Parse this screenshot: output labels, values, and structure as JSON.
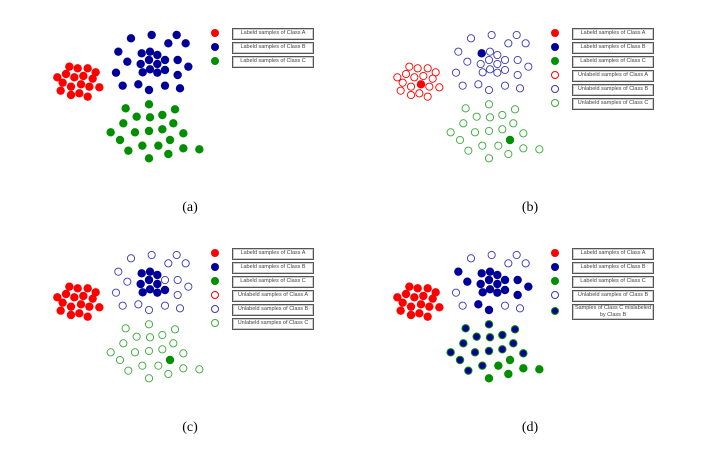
{
  "colors": {
    "class_a": "#ff0000",
    "class_b": "#000099",
    "class_c": "#008f00",
    "hollow_b": "#3a3ab8",
    "hollow_c": "#3aaa3a"
  },
  "panels": [
    {
      "caption": "(a)",
      "legend": [
        {
          "label": "Labeld samples of Class A",
          "marker": "filled-a"
        },
        {
          "label": "Labeld samples of Class B",
          "marker": "filled-b"
        },
        {
          "label": "Labeld samples of Class C",
          "marker": "filled-c"
        }
      ]
    },
    {
      "caption": "(b)",
      "legend": [
        {
          "label": "Labeld samples of Class A",
          "marker": "filled-a"
        },
        {
          "label": "Labeld samples of Class B",
          "marker": "filled-b"
        },
        {
          "label": "Labeld samples of Class C",
          "marker": "filled-c"
        },
        {
          "label": "Unlabeld samples of Class A",
          "marker": "hollow-a"
        },
        {
          "label": "Unlabeld samples of Class B",
          "marker": "hollow-b"
        },
        {
          "label": "Unlabeld samples of Class C",
          "marker": "hollow-c"
        }
      ]
    },
    {
      "caption": "(c)",
      "legend": [
        {
          "label": "Labeld samples of Class A",
          "marker": "filled-a"
        },
        {
          "label": "Labeld samples of Class B",
          "marker": "filled-b"
        },
        {
          "label": "Labeld samples of Class C",
          "marker": "filled-c"
        },
        {
          "label": "Unlabeld samples of Class A",
          "marker": "hollow-a"
        },
        {
          "label": "Unlabeld samples of Class B",
          "marker": "hollow-b"
        },
        {
          "label": "Unlabeld samples of Class C",
          "marker": "hollow-c"
        }
      ]
    },
    {
      "caption": "(d)",
      "legend": [
        {
          "label": "Labeld samples of Class A",
          "marker": "filled-a"
        },
        {
          "label": "Labeld samples of Class B",
          "marker": "filled-b"
        },
        {
          "label": "Labeld samples of Class C",
          "marker": "filled-c"
        },
        {
          "label": "Unlabeld samples of Class B",
          "marker": "hollow-b"
        },
        {
          "label": "Samples of Class C mislabeled by Class B",
          "marker": "mislabeled"
        }
      ]
    }
  ]
}
